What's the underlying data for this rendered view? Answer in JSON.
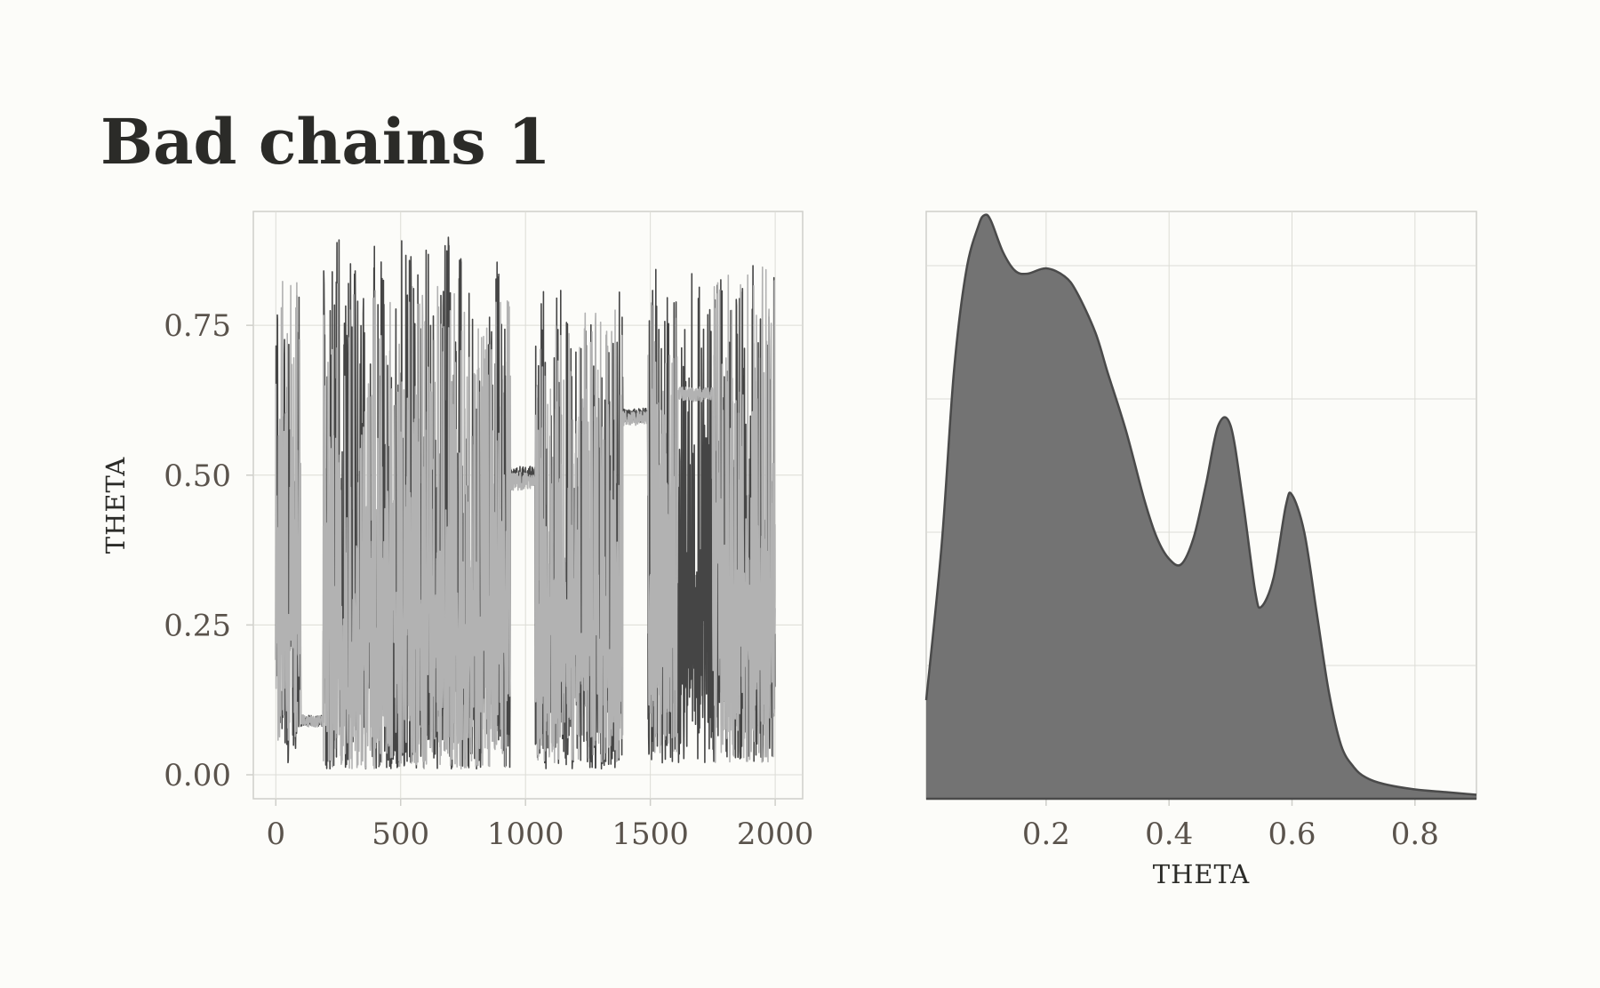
{
  "title": "Bad chains 1",
  "colors": {
    "background": "#fcfcf9",
    "grid": "#dcdcd6",
    "panel_border": "#cfcfca",
    "chain_dark": "#454545",
    "chain_light": "#b2b2b2",
    "density_fill": "#737373",
    "density_line": "#4a4a4a",
    "tick_text": "#5a534c",
    "title_text": "#2b2b28"
  },
  "chart_data": [
    {
      "type": "line",
      "title": "Bad chains 1",
      "xlabel": "",
      "ylabel": "THETA",
      "xlim": [
        -90,
        2110
      ],
      "ylim": [
        -0.04,
        0.94
      ],
      "x_ticks": [
        0,
        500,
        1000,
        1500,
        2000
      ],
      "x_tick_labels": [
        "0",
        "500",
        "1000",
        "1500",
        "2000"
      ],
      "y_ticks": [
        0,
        0.25,
        0.5,
        0.75
      ],
      "y_tick_labels": [
        "0.00",
        "0.25",
        "0.50",
        "0.75"
      ],
      "grid": true,
      "legend": "none",
      "iterations": [
        1,
        2000
      ],
      "series": [
        {
          "values_description_free": true,
          "segments": [
            {
              "x": [
                0,
                100
              ],
              "regime": "mixing",
              "low": 0.02,
              "high": 0.81
            },
            {
              "x": [
                100,
                190
              ],
              "regime": "stuck",
              "level": 0.09,
              "spread": 0.01
            },
            {
              "x": [
                190,
                940
              ],
              "regime": "mixing",
              "low": 0.01,
              "high": 0.9
            },
            {
              "x": [
                940,
                1040
              ],
              "regime": "stuck",
              "level": 0.5,
              "spread": 0.015
            },
            {
              "x": [
                1040,
                1390
              ],
              "regime": "mixing",
              "low": 0.01,
              "high": 0.81
            },
            {
              "x": [
                1390,
                1490
              ],
              "regime": "stuck",
              "level": 0.6,
              "spread": 0.012
            },
            {
              "x": [
                1490,
                2000
              ],
              "regime": "mixing",
              "low": 0.02,
              "high": 0.85
            }
          ]
        },
        {
          "segments": [
            {
              "x": [
                0,
                100
              ],
              "regime": "mixing",
              "low": 0.05,
              "high": 0.86
            },
            {
              "x": [
                100,
                190
              ],
              "regime": "stuck",
              "level": 0.09,
              "spread": 0.01
            },
            {
              "x": [
                190,
                940
              ],
              "regime": "mixing",
              "low": 0.01,
              "high": 0.82
            },
            {
              "x": [
                940,
                1040
              ],
              "regime": "stuck",
              "level": 0.49,
              "spread": 0.015
            },
            {
              "x": [
                1040,
                1390
              ],
              "regime": "mixing",
              "low": 0.02,
              "high": 0.79
            },
            {
              "x": [
                1390,
                1490
              ],
              "regime": "stuck",
              "level": 0.595,
              "spread": 0.012
            },
            {
              "x": [
                1490,
                1750
              ],
              "regime": "mixing",
              "low": 0.03,
              "high": 0.8
            },
            {
              "x": [
                1610,
                1750
              ],
              "regime": "stuck",
              "level": 0.635,
              "spread": 0.012
            },
            {
              "x": [
                1750,
                2000
              ],
              "regime": "mixing",
              "low": 0.02,
              "high": 0.85
            }
          ]
        }
      ]
    },
    {
      "type": "area",
      "title": "",
      "xlabel": "THETA",
      "ylabel": "",
      "xlim": [
        0.005,
        0.9
      ],
      "ylim": [
        0,
        2.19
      ],
      "x_ticks": [
        0.2,
        0.4,
        0.6,
        0.8
      ],
      "x_tick_labels": [
        "0.2",
        "0.4",
        "0.6",
        "0.8"
      ],
      "y_ticks": [
        0.5,
        1.0,
        1.5,
        2.0
      ],
      "y_tick_labels": [],
      "grid": true,
      "legend": "none",
      "x": [
        0.005,
        0.03,
        0.05,
        0.07,
        0.09,
        0.1,
        0.11,
        0.13,
        0.15,
        0.17,
        0.2,
        0.23,
        0.25,
        0.28,
        0.3,
        0.33,
        0.36,
        0.38,
        0.4,
        0.42,
        0.44,
        0.46,
        0.48,
        0.5,
        0.52,
        0.54,
        0.55,
        0.57,
        0.59,
        0.6,
        0.62,
        0.64,
        0.66,
        0.68,
        0.7,
        0.72,
        0.75,
        0.8,
        0.85,
        0.9
      ],
      "y": [
        0.37,
        0.95,
        1.6,
        1.98,
        2.15,
        2.19,
        2.17,
        2.05,
        1.98,
        1.97,
        1.99,
        1.96,
        1.9,
        1.75,
        1.6,
        1.38,
        1.12,
        0.98,
        0.9,
        0.88,
        0.98,
        1.18,
        1.4,
        1.4,
        1.12,
        0.78,
        0.72,
        0.83,
        1.1,
        1.14,
        1.0,
        0.7,
        0.4,
        0.2,
        0.12,
        0.08,
        0.055,
        0.035,
        0.025,
        0.015
      ]
    }
  ]
}
